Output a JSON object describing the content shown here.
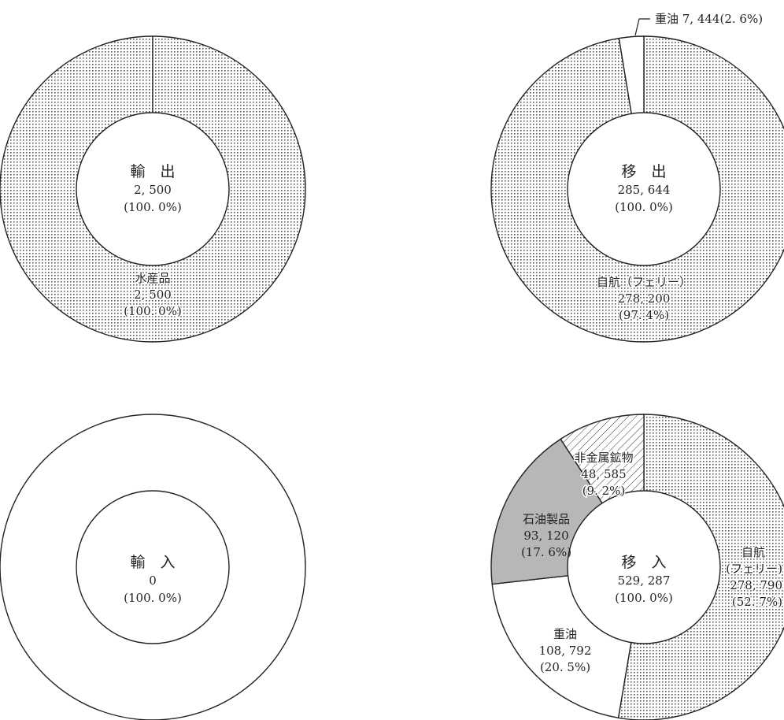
{
  "chart_data": [
    {
      "type": "pie",
      "center_label": {
        "title": "輸　出",
        "total": "2, 500",
        "percent": "(100. 0%)"
      },
      "slices": [
        {
          "name": "水産品",
          "value": 2500,
          "value_label": "2, 500",
          "percent_label": "(100. 0%)",
          "pattern": "dots"
        }
      ]
    },
    {
      "type": "pie",
      "center_label": {
        "title": "移　出",
        "total": "285, 644",
        "percent": "(100. 0%)"
      },
      "slices": [
        {
          "name": "自航（フェリー）",
          "value": 278200,
          "value_label": "278, 200",
          "percent_label": "(97. 4%)",
          "pattern": "dots"
        },
        {
          "name": "重油",
          "value": 7444,
          "value_label": "7, 444",
          "percent_label": "(2. 6%)",
          "pattern": "white",
          "callout": "重油 7, 444(2. 6%)"
        }
      ]
    },
    {
      "type": "pie",
      "center_label": {
        "title": "輸　入",
        "total": "0",
        "percent": "(100. 0%)"
      },
      "slices": []
    },
    {
      "type": "pie",
      "center_label": {
        "title": "移　入",
        "total": "529, 287",
        "percent": "(100. 0%)"
      },
      "slices": [
        {
          "name": "自航",
          "name2": "(フェリー)",
          "value": 278790,
          "value_label": "278, 790",
          "percent_label": "(52. 7%)",
          "pattern": "dots"
        },
        {
          "name": "重油",
          "value": 108792,
          "value_label": "108, 792",
          "percent_label": "(20. 5%)",
          "pattern": "white"
        },
        {
          "name": "石油製品",
          "value": 93120,
          "value_label": "93, 120",
          "percent_label": "(17. 6%)",
          "pattern": "gray"
        },
        {
          "name": "非金属鉱物",
          "value": 48585,
          "value_label": "48, 585",
          "percent_label": "(9. 2%)",
          "pattern": "hatch"
        }
      ]
    }
  ],
  "colors": {
    "stroke": "#222222",
    "gray": "#b7b7b7",
    "dots": "#555555"
  }
}
